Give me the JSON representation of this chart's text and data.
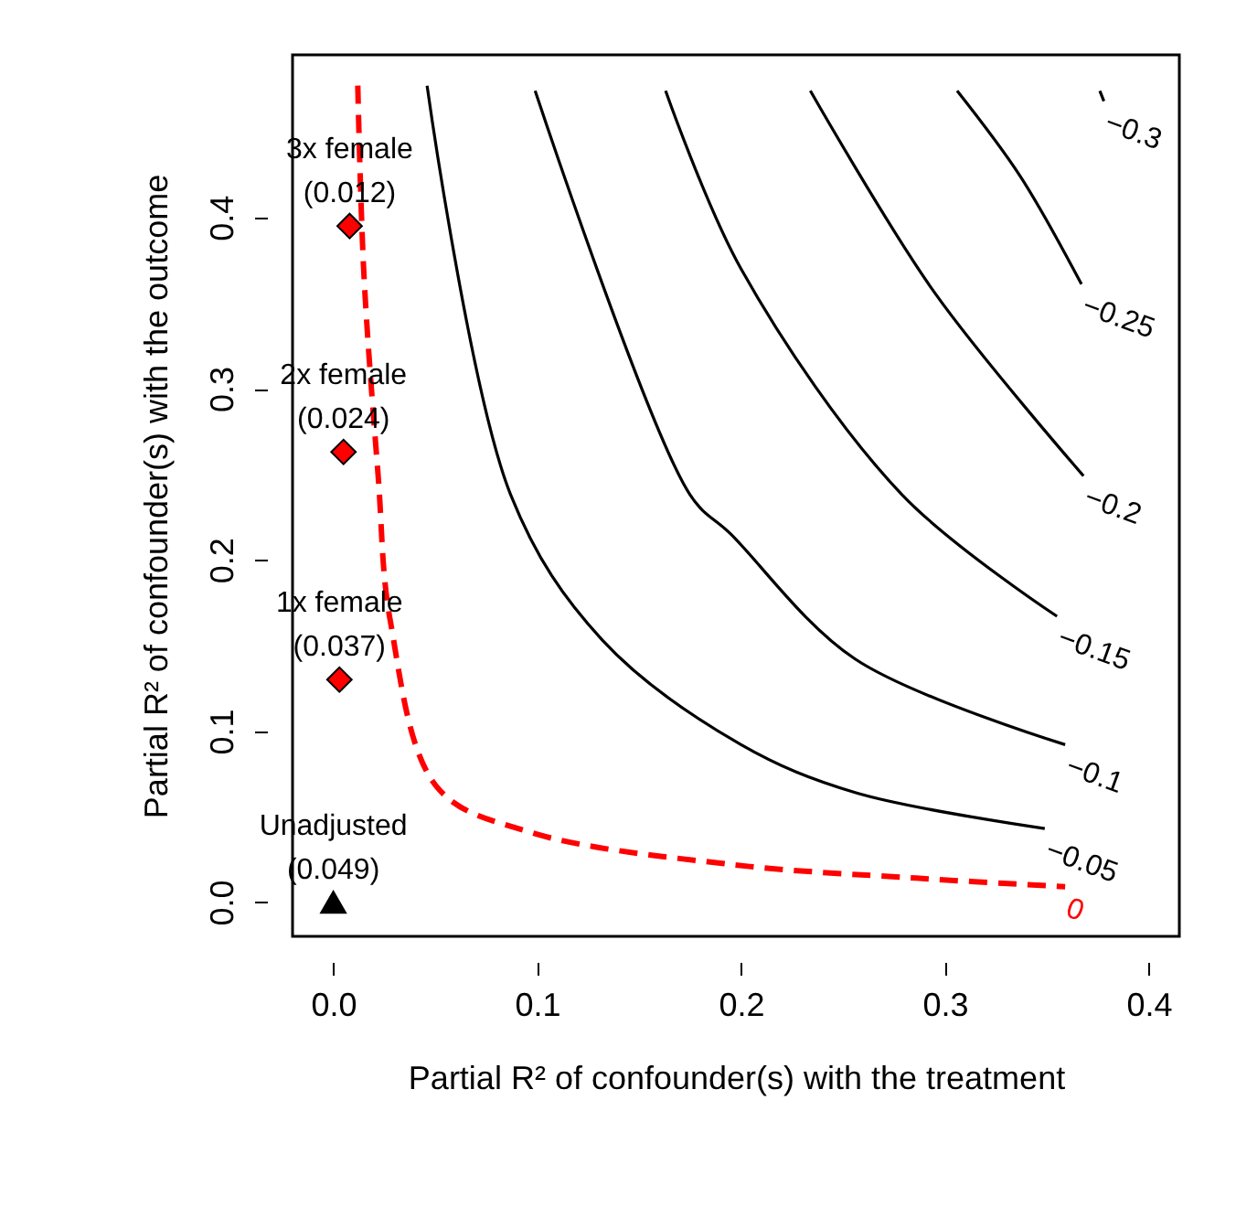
{
  "chart_data": {
    "type": "line",
    "xlabel": "Partial R² of confounder(s) with the treatment",
    "ylabel": "Partial R² of confounder(s) with the outcome",
    "xlim": [
      -0.02,
      0.415
    ],
    "ylim": [
      -0.02,
      0.495
    ],
    "xticks": [
      {
        "value": 0,
        "label": "0.0"
      },
      0.1,
      0.2,
      0.3,
      0.4
    ],
    "yticks": [
      {
        "value": 0,
        "label": "0.0"
      },
      0.1,
      0.2,
      0.3,
      0.4
    ],
    "grid": false,
    "series": [
      {
        "name": "0",
        "color": "#ff0000",
        "line_style": "dashed",
        "x": [
          0.012,
          0.015,
          0.022,
          0.028,
          0.051,
          0.096,
          0.195,
          0.286,
          0.359
        ],
        "values": [
          0.477,
          0.367,
          0.249,
          0.164,
          0.067,
          0.041,
          0.022,
          0.014,
          0.009
        ]
      },
      {
        "name": "−0.05",
        "color": "#000000",
        "line_style": "solid",
        "x": [
          0.046,
          0.087,
          0.132,
          0.2,
          0.256,
          0.349
        ],
        "values": [
          0.477,
          0.238,
          0.153,
          0.092,
          0.064,
          0.043
        ]
      },
      {
        "name": "−0.1",
        "color": "#000000",
        "line_style": "solid",
        "x": [
          0.099,
          0.175,
          0.195,
          0.256,
          0.359
        ],
        "values": [
          0.474,
          0.238,
          0.215,
          0.142,
          0.092
        ]
      },
      {
        "name": "−0.15",
        "color": "#000000",
        "line_style": "solid",
        "x": [
          0.163,
          0.2,
          0.279,
          0.355
        ],
        "values": [
          0.474,
          0.37,
          0.238,
          0.167
        ]
      },
      {
        "name": "−0.2",
        "color": "#000000",
        "line_style": "solid",
        "x": [
          0.234,
          0.295,
          0.368
        ],
        "values": [
          0.474,
          0.356,
          0.249
        ]
      },
      {
        "name": "−0.25",
        "color": "#000000",
        "line_style": "solid",
        "x": [
          0.306,
          0.337,
          0.367
        ],
        "values": [
          0.474,
          0.424,
          0.361
        ]
      },
      {
        "name": "−0.3",
        "color": "#000000",
        "line_style": "solid",
        "x": [
          0.376,
          0.378
        ],
        "values": [
          0.474,
          0.468
        ]
      },
      {
        "type": "scatter",
        "marker": "triangle",
        "color": "#000000",
        "x": [
          0
        ],
        "values": [
          0
        ]
      },
      {
        "type": "scatter",
        "marker": "diamond",
        "color": "#ff0000",
        "x": [
          0.003,
          0.005,
          0.008
        ],
        "values": [
          0.13,
          0.263,
          0.395
        ]
      }
    ],
    "annotations": [
      {
        "text": "Unadjusted\n(0.049)",
        "x": 0,
        "y": 0
      },
      {
        "text": "1x female\n(0.037)",
        "x": 0.003,
        "y": 0.13
      },
      {
        "text": "2x female\n(0.024)",
        "x": 0.005,
        "y": 0.263
      },
      {
        "text": "3x female\n(0.012)",
        "x": 0.008,
        "y": 0.395
      }
    ]
  }
}
